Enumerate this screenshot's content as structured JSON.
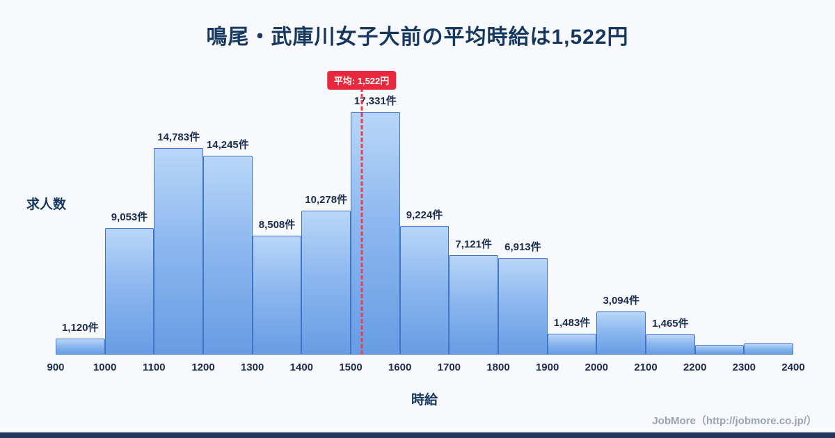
{
  "page": {
    "title": "鳴尾・武庫川女子大前の平均時給は1,522円",
    "footer": "JobMore（http://jobmore.co.jp/）"
  },
  "chart_data": {
    "type": "bar",
    "title": "鳴尾・武庫川女子大前の平均時給は1,522円",
    "xlabel": "時給",
    "ylabel": "求人数",
    "categories": [
      "900-1000",
      "1000-1100",
      "1100-1200",
      "1200-1300",
      "1300-1400",
      "1400-1500",
      "1500-1600",
      "1600-1700",
      "1700-1800",
      "1800-1900",
      "1900-2000",
      "2000-2100",
      "2100-2200",
      "2200-2300",
      "2300-2400"
    ],
    "values": [
      1120,
      9053,
      14783,
      14245,
      8508,
      10278,
      17331,
      9224,
      7121,
      6913,
      1483,
      3094,
      1465,
      700,
      800
    ],
    "value_labels": [
      "1,120件",
      "9,053件",
      "14,783件",
      "14,245件",
      "8,508件",
      "10,278件",
      "17,331件",
      "9,224件",
      "7,121件",
      "6,913件",
      "1,483件",
      "3,094件",
      "1,465件",
      "",
      ""
    ],
    "x_ticks": [
      900,
      1000,
      1100,
      1200,
      1300,
      1400,
      1500,
      1600,
      1700,
      1800,
      1900,
      2000,
      2100,
      2200,
      2300,
      2400
    ],
    "ylim": [
      0,
      18000
    ],
    "grid": false,
    "legend": "none",
    "average": {
      "value": 1522,
      "label": "平均: 1,522円"
    },
    "colors": {
      "background": "#f7f9fd",
      "bar_top": "#b9d6f8",
      "bar_bottom": "#679ce4",
      "bar_border": "#3f74c6",
      "average_line": "#e8404e",
      "badge_bg": "#e8293d",
      "badge_text": "#ffffff",
      "title_text": "#16375e",
      "label_text": "#1b2d4d",
      "footer_text": "#98a3b3",
      "bottom_strip": "#20365c"
    }
  }
}
